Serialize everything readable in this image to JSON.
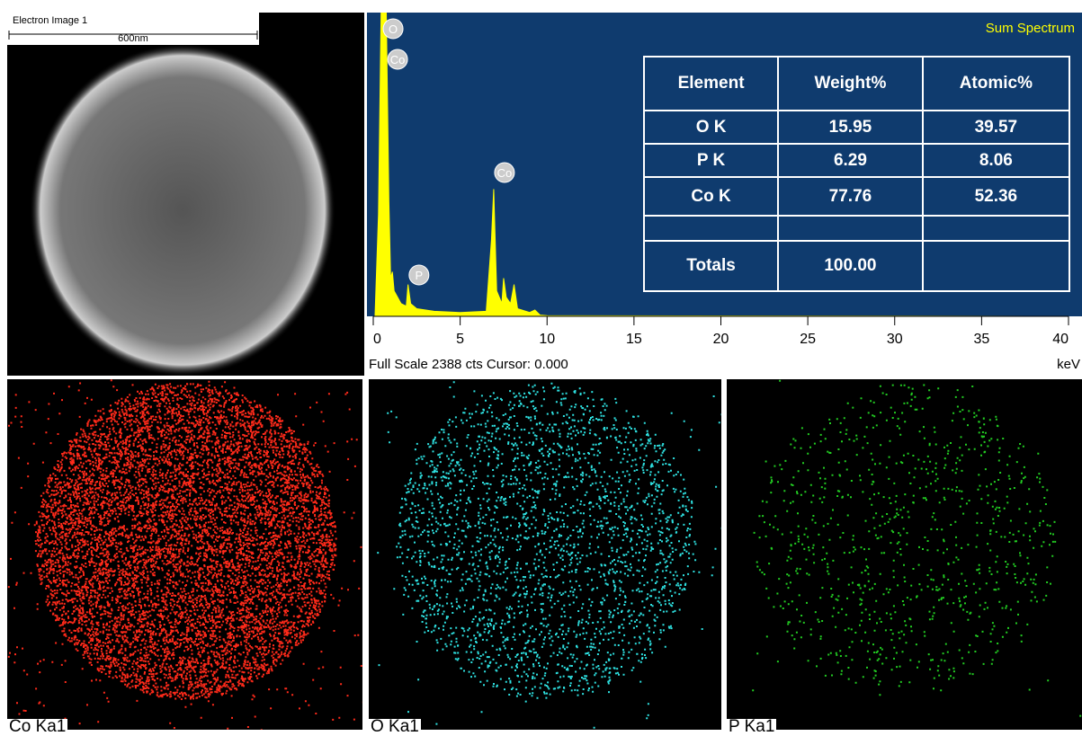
{
  "electron_image": {
    "title": "Electron Image 1",
    "scale_bar": "600nm"
  },
  "chart_data": {
    "type": "area",
    "title": "Sum Spectrum",
    "color": "#ffff00",
    "background": "#0f3b6e",
    "x": [
      0.1,
      0.3,
      0.45,
      0.6,
      0.75,
      0.9,
      1.0,
      1.1,
      1.2,
      1.4,
      1.6,
      1.9,
      2.0,
      2.15,
      2.5,
      3.5,
      5,
      6.5,
      6.8,
      6.93,
      7.1,
      7.4,
      7.5,
      7.65,
      7.9,
      8.1,
      8.3,
      9,
      9.3,
      9.6,
      10,
      40
    ],
    "values": [
      0,
      800,
      2388,
      2388,
      2388,
      900,
      300,
      350,
      200,
      150,
      100,
      80,
      250,
      100,
      60,
      40,
      30,
      40,
      600,
      1000,
      200,
      100,
      300,
      150,
      100,
      250,
      60,
      30,
      50,
      10,
      5,
      0
    ],
    "xlim": [
      0,
      40
    ],
    "xticks": [
      0,
      5,
      10,
      15,
      20,
      25,
      30,
      35,
      40
    ],
    "ylim": [
      0,
      2388
    ],
    "xlabel": "keV",
    "footer": "Full Scale 2388 cts Cursor: 0.000",
    "annotations": [
      {
        "label": "O",
        "x": 0.52
      },
      {
        "label": "Co",
        "x": 0.78
      },
      {
        "label": "Co",
        "x": 6.93
      },
      {
        "label": "P",
        "x": 2.01
      }
    ]
  },
  "table": {
    "header": [
      "Element",
      "Weight%",
      "Atomic%"
    ],
    "rows": [
      [
        "O K",
        "15.95",
        "39.57"
      ],
      [
        "P K",
        "6.29",
        "8.06"
      ],
      [
        "Co K",
        "77.76",
        "52.36"
      ],
      [
        "Totals",
        "100.00"
      ]
    ]
  },
  "maps": [
    {
      "label": "Co Ka1",
      "color": "#ff2a1a",
      "count": 9000
    },
    {
      "label": "O Ka1",
      "color": "#2ee0e0",
      "count": 2600
    },
    {
      "label": "P Ka1",
      "color": "#22cc22",
      "count": 900
    }
  ]
}
